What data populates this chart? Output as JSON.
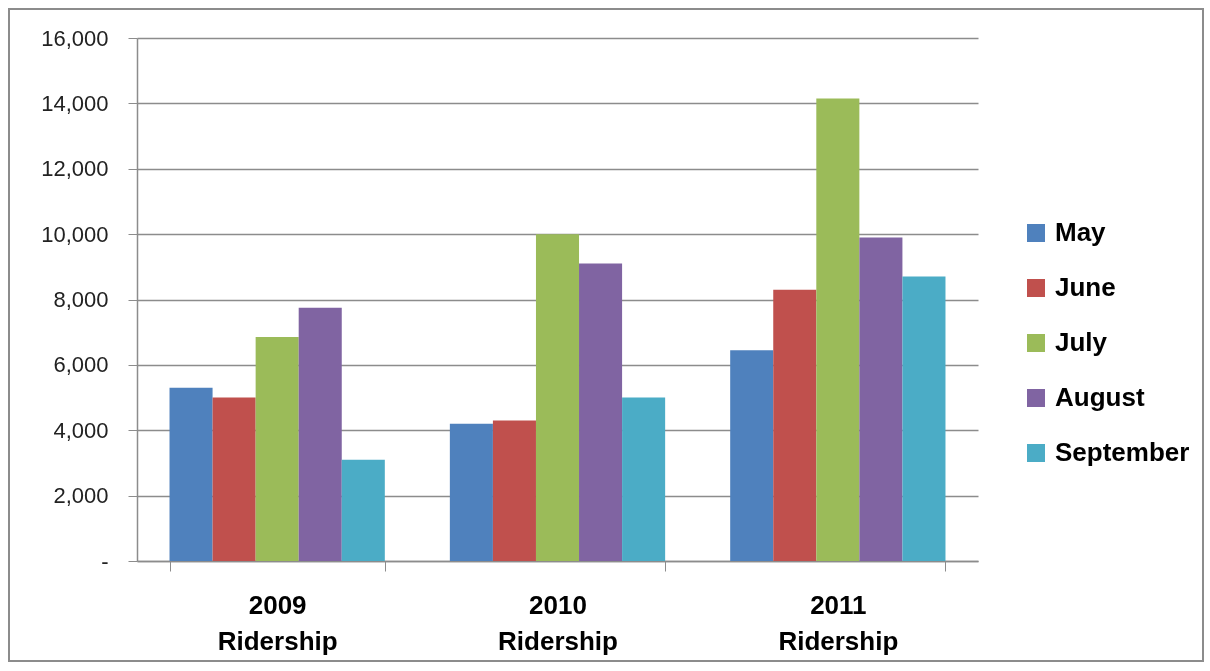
{
  "chart_data": {
    "type": "bar",
    "categories": [
      "2009 Ridership",
      "2010 Ridership",
      "2011 Ridership"
    ],
    "series": [
      {
        "name": "May",
        "color": "#4f81bd",
        "values": [
          5300,
          4200,
          6450
        ]
      },
      {
        "name": "June",
        "color": "#c0504d",
        "values": [
          5000,
          4300,
          8300
        ]
      },
      {
        "name": "July",
        "color": "#9bbb59",
        "values": [
          6850,
          10000,
          14150
        ]
      },
      {
        "name": "August",
        "color": "#8064a2",
        "values": [
          7750,
          9100,
          9900
        ]
      },
      {
        "name": "September",
        "color": "#4bacc6",
        "values": [
          3100,
          5000,
          8700
        ]
      }
    ],
    "ylim": [
      0,
      16000
    ],
    "yticks": [
      {
        "value": 0,
        "label": "-"
      },
      {
        "value": 2000,
        "label": "2,000"
      },
      {
        "value": 4000,
        "label": "4,000"
      },
      {
        "value": 6000,
        "label": "6,000"
      },
      {
        "value": 8000,
        "label": "8,000"
      },
      {
        "value": 10000,
        "label": "10,000"
      },
      {
        "value": 12000,
        "label": "12,000"
      },
      {
        "value": 14000,
        "label": "14,000"
      },
      {
        "value": 16000,
        "label": "16,000"
      }
    ],
    "grid": "y",
    "legend": "right"
  }
}
